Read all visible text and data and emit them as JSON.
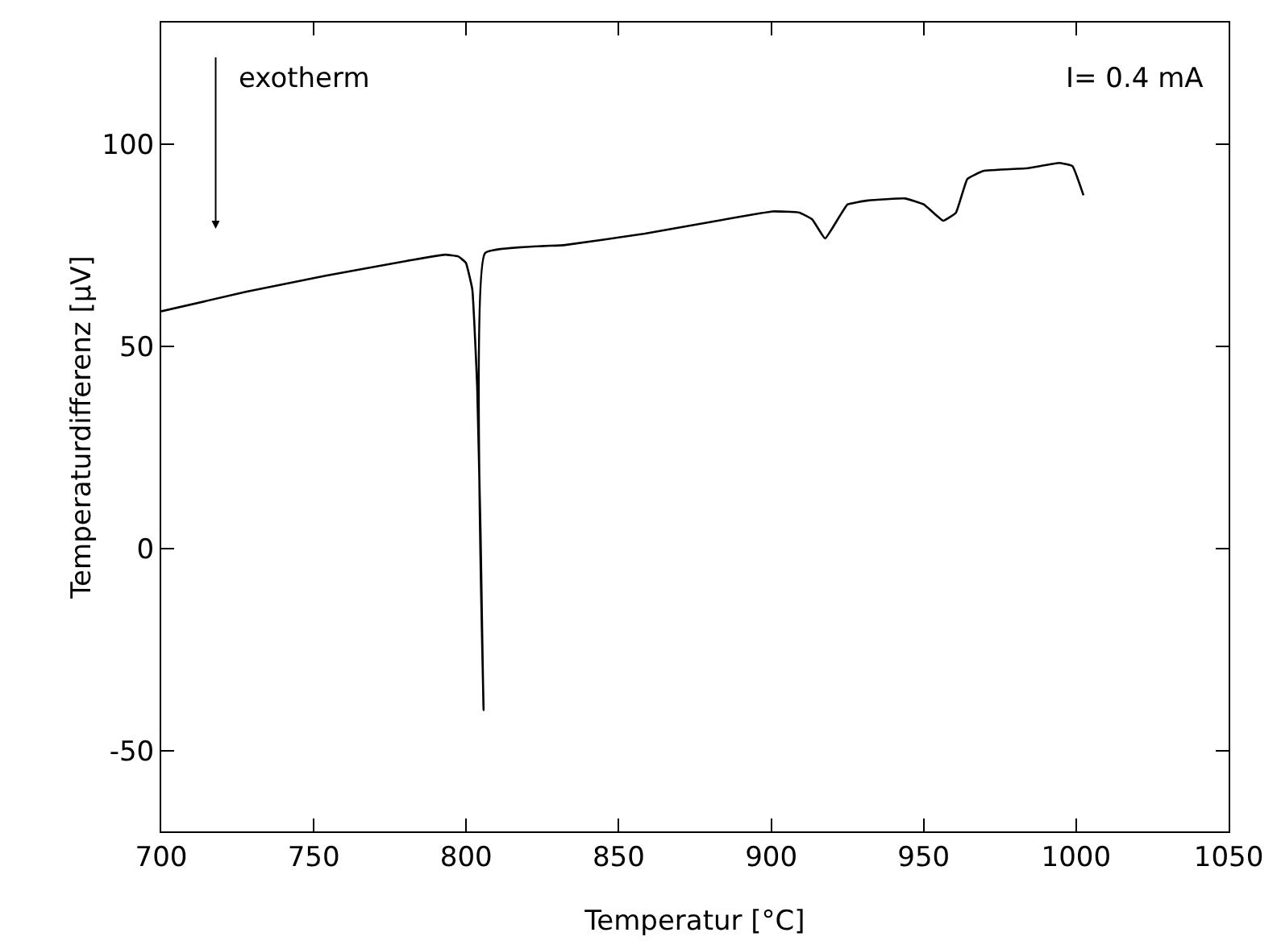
{
  "chart_data": {
    "type": "line",
    "xlabel": "Temperatur [°C]",
    "ylabel": "Temperaturdifferenz [μV]",
    "x": [
      700,
      727.7,
      753.9,
      780,
      793.1,
      797.3,
      799.9,
      802,
      803.6,
      804.7,
      805.7,
      806.2,
      832.4,
      858.6,
      884.7,
      900.4,
      909.3,
      913.5,
      917.7,
      925,
      931.8,
      943.9,
      950.1,
      956.4,
      960.6,
      964.3,
      969.5,
      984.2,
      994.6,
      998.8,
      1002.4
    ],
    "series": [
      {
        "color": "#000000",
        "values": [
          58.6,
          63.4,
          67.4,
          71,
          72.6,
          72.2,
          70.6,
          64,
          40,
          4,
          -40,
          73,
          75,
          77.8,
          81.3,
          83.3,
          83,
          81.3,
          76.6,
          85,
          86,
          86.5,
          85,
          81,
          83,
          91.3,
          93.3,
          94,
          95.3,
          94.5,
          87.3
        ]
      }
    ],
    "xlim": [
      700,
      1050
    ],
    "ylim": [
      -70,
      130
    ],
    "xticks": [
      700,
      750,
      800,
      850,
      900,
      950,
      1000,
      1050
    ],
    "yticks": [
      -50,
      0,
      50,
      100
    ],
    "grid": false,
    "marker": "none",
    "line_style": "solid",
    "annotations": [
      "exotherm",
      "I= 0.4 mA"
    ]
  }
}
